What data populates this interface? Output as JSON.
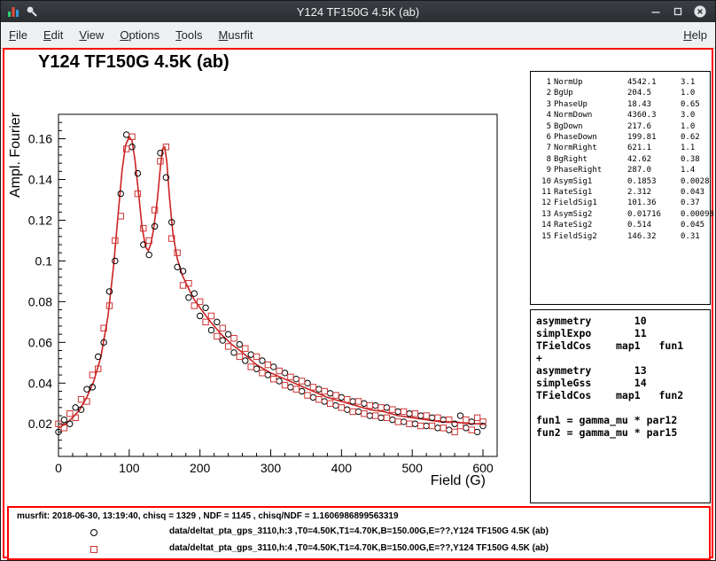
{
  "window": {
    "title": "Y124 TF150G 4.5K (ab)"
  },
  "menubar": {
    "items": [
      "File",
      "Edit",
      "View",
      "Options",
      "Tools",
      "Musrfit"
    ],
    "right_items": [
      "Help"
    ]
  },
  "plot": {
    "title": "Y124 TF150G 4.5K (ab)",
    "ylabel": "Ampl. Fourier",
    "xlabel": "Field (G)"
  },
  "params_panel": {
    "rows": [
      {
        "idx": "1",
        "name": "NormUp",
        "value": "4542.1",
        "error": "3.1"
      },
      {
        "idx": "2",
        "name": "BgUp",
        "value": "204.5",
        "error": "1.0"
      },
      {
        "idx": "3",
        "name": "PhaseUp",
        "value": "18.43",
        "error": "0.65"
      },
      {
        "idx": "4",
        "name": "NormDown",
        "value": "4360.3",
        "error": "3.0"
      },
      {
        "idx": "5",
        "name": "BgDown",
        "value": "217.6",
        "error": "1.0"
      },
      {
        "idx": "6",
        "name": "PhaseDown",
        "value": "199.81",
        "error": "0.62"
      },
      {
        "idx": "7",
        "name": "NormRight",
        "value": "621.1",
        "error": "1.1"
      },
      {
        "idx": "8",
        "name": "BgRight",
        "value": "42.62",
        "error": "0.38"
      },
      {
        "idx": "9",
        "name": "PhaseRight",
        "value": "287.0",
        "error": "1.4"
      },
      {
        "idx": "10",
        "name": "AsymSig1",
        "value": "0.1853",
        "error": "0.0028"
      },
      {
        "idx": "11",
        "name": "RateSig1",
        "value": "2.312",
        "error": "0.043"
      },
      {
        "idx": "12",
        "name": "FieldSig1",
        "value": "101.36",
        "error": "0.37"
      },
      {
        "idx": "13",
        "name": "AsymSig2",
        "value": "0.01716",
        "error": "0.00098"
      },
      {
        "idx": "14",
        "name": "RateSig2",
        "value": "0.514",
        "error": "0.045"
      },
      {
        "idx": "15",
        "name": "FieldSig2",
        "value": "146.32",
        "error": "0.31"
      }
    ]
  },
  "theory_panel": {
    "lines": [
      "asymmetry       10",
      "simplExpo       11",
      "TFieldCos    map1   fun1",
      "+",
      "asymmetry       13",
      "simpleGss       14",
      "TFieldCos    map1   fun2",
      "",
      "fun1 = gamma_mu * par12",
      "fun2 = gamma_mu * par15"
    ]
  },
  "statusbar": {
    "text": "musrfit: 2018-06-30, 13:19:40, chisq = 1329 , NDF = 1145 , chisq/NDF = 1.1606986899563319"
  },
  "legend": {
    "entries": [
      {
        "marker": "circle",
        "color": "#000000",
        "label": "data/deltat_pta_gps_3110,h:3 ,T0=4.50K,T1=4.70K,B=150.00G,E=??,Y124 TF150G 4.5K (ab)"
      },
      {
        "marker": "square",
        "color": "#cc3333",
        "label": "data/deltat_pta_gps_3110,h:4 ,T0=4.50K,T1=4.70K,B=150.00G,E=??,Y124 TF150G 4.5K (ab)"
      }
    ]
  },
  "chart_data": {
    "type": "scatter",
    "title": "Y124 TF150G 4.5K (ab)",
    "xlabel": "Field (G)",
    "ylabel": "Ampl. Fourier",
    "xlim": [
      0,
      620
    ],
    "ylim": [
      0.004,
      0.172
    ],
    "xticks": [
      0,
      100,
      200,
      300,
      400,
      500,
      600
    ],
    "yticks": [
      0.02,
      0.04,
      0.06,
      0.08,
      0.1,
      0.12,
      0.14,
      0.16
    ],
    "grid": false,
    "legend_position": "bottom",
    "x": [
      0,
      8,
      16,
      24,
      32,
      40,
      48,
      56,
      64,
      72,
      80,
      88,
      96,
      104,
      112,
      120,
      128,
      136,
      144,
      152,
      160,
      168,
      176,
      184,
      192,
      200,
      208,
      216,
      224,
      232,
      240,
      248,
      256,
      264,
      272,
      280,
      288,
      296,
      304,
      312,
      320,
      328,
      336,
      344,
      352,
      360,
      368,
      376,
      384,
      392,
      400,
      408,
      416,
      424,
      432,
      440,
      448,
      456,
      464,
      472,
      480,
      488,
      496,
      504,
      512,
      520,
      528,
      536,
      544,
      552,
      560,
      568,
      576,
      584,
      592,
      600
    ],
    "series": [
      {
        "name": "data/deltat_pta_gps_3110,h:3",
        "marker": "circle",
        "color": "#000000",
        "values": [
          0.016,
          0.022,
          0.02,
          0.028,
          0.027,
          0.037,
          0.038,
          0.053,
          0.06,
          0.085,
          0.1,
          0.133,
          0.162,
          0.156,
          0.143,
          0.108,
          0.103,
          0.117,
          0.153,
          0.141,
          0.119,
          0.097,
          0.095,
          0.082,
          0.084,
          0.073,
          0.077,
          0.066,
          0.07,
          0.061,
          0.064,
          0.055,
          0.059,
          0.051,
          0.054,
          0.047,
          0.051,
          0.044,
          0.048,
          0.041,
          0.045,
          0.038,
          0.042,
          0.036,
          0.04,
          0.033,
          0.037,
          0.031,
          0.035,
          0.029,
          0.033,
          0.027,
          0.031,
          0.026,
          0.03,
          0.024,
          0.029,
          0.023,
          0.028,
          0.022,
          0.026,
          0.021,
          0.025,
          0.02,
          0.024,
          0.019,
          0.023,
          0.018,
          0.022,
          0.017,
          0.02,
          0.024,
          0.018,
          0.021,
          0.016,
          0.019
        ]
      },
      {
        "name": "data/deltat_pta_gps_3110,h:4",
        "marker": "square",
        "color": "#cc3333",
        "values": [
          0.02,
          0.018,
          0.025,
          0.023,
          0.032,
          0.031,
          0.044,
          0.047,
          0.067,
          0.078,
          0.11,
          0.122,
          0.155,
          0.161,
          0.133,
          0.116,
          0.11,
          0.125,
          0.149,
          0.156,
          0.111,
          0.104,
          0.088,
          0.089,
          0.078,
          0.08,
          0.07,
          0.073,
          0.063,
          0.067,
          0.058,
          0.062,
          0.053,
          0.057,
          0.048,
          0.053,
          0.045,
          0.049,
          0.042,
          0.046,
          0.039,
          0.043,
          0.037,
          0.041,
          0.034,
          0.038,
          0.032,
          0.036,
          0.03,
          0.034,
          0.028,
          0.032,
          0.026,
          0.031,
          0.025,
          0.029,
          0.024,
          0.028,
          0.023,
          0.027,
          0.021,
          0.026,
          0.02,
          0.025,
          0.019,
          0.024,
          0.019,
          0.023,
          0.018,
          0.022,
          0.016,
          0.019,
          0.022,
          0.017,
          0.023,
          0.021
        ]
      }
    ],
    "fit_line": {
      "name": "theory fit",
      "color": "#cc2222",
      "x": [
        0,
        10,
        20,
        30,
        40,
        50,
        60,
        70,
        78,
        84,
        90,
        95,
        100,
        104,
        108,
        113,
        118,
        123,
        127,
        131,
        135,
        140,
        144,
        147,
        150,
        153,
        157,
        162,
        168,
        175,
        183,
        192,
        200,
        215,
        230,
        245,
        260,
        280,
        300,
        320,
        340,
        360,
        380,
        400,
        420,
        440,
        460,
        480,
        500,
        520,
        540,
        560,
        580,
        600
      ],
      "y": [
        0.018,
        0.02,
        0.023,
        0.027,
        0.033,
        0.041,
        0.053,
        0.073,
        0.098,
        0.122,
        0.145,
        0.157,
        0.161,
        0.159,
        0.15,
        0.134,
        0.117,
        0.107,
        0.105,
        0.109,
        0.117,
        0.131,
        0.146,
        0.155,
        0.156,
        0.149,
        0.131,
        0.113,
        0.101,
        0.093,
        0.087,
        0.081,
        0.077,
        0.07,
        0.064,
        0.059,
        0.055,
        0.049,
        0.045,
        0.042,
        0.039,
        0.036,
        0.033,
        0.031,
        0.029,
        0.027,
        0.026,
        0.024,
        0.023,
        0.022,
        0.021,
        0.021,
        0.02,
        0.02
      ]
    }
  }
}
